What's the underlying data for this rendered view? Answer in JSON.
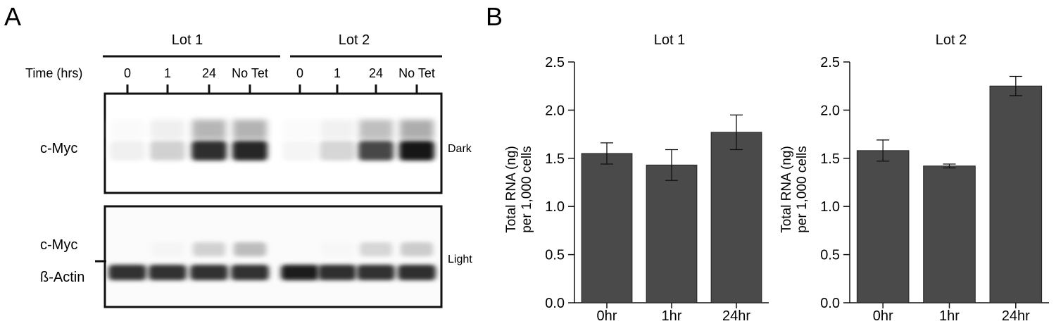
{
  "panel_a": {
    "label": "A",
    "lot_headers": [
      "Lot 1",
      "Lot 2"
    ],
    "time_label": "Time (hrs)",
    "lanes": [
      "0",
      "1",
      "24",
      "No Tet",
      "0",
      "1",
      "24",
      "No Tet"
    ],
    "blot_top": {
      "band_label": "c-Myc",
      "exposure_label": "Dark",
      "band_intensity": [
        0.06,
        0.18,
        0.82,
        0.85,
        0.04,
        0.16,
        0.72,
        0.92
      ]
    },
    "blot_bottom": {
      "band_label_myc": "c-Myc",
      "band_label_actin": "ß-Actin",
      "exposure_label": "Light",
      "myc_intensity": [
        0.0,
        0.04,
        0.18,
        0.26,
        0.0,
        0.03,
        0.16,
        0.2
      ],
      "actin_intensity": [
        0.8,
        0.8,
        0.8,
        0.8,
        0.88,
        0.82,
        0.8,
        0.82
      ]
    }
  },
  "panel_b": {
    "label": "B"
  },
  "chart_data": [
    {
      "type": "bar",
      "title": "Lot 1",
      "categories": [
        "0hr",
        "1hr",
        "24hr"
      ],
      "values": [
        1.55,
        1.43,
        1.77
      ],
      "errors": [
        0.11,
        0.16,
        0.18
      ],
      "ylabel_line1": "Total RNA (ng)",
      "ylabel_line2": "per 1,000 cells",
      "ylim": [
        0,
        2.5
      ],
      "yticks": [
        "0.0",
        "0.5",
        "1.0",
        "1.5",
        "2.0",
        "2.5"
      ],
      "bar_color": "#4a4a4a",
      "grid": false
    },
    {
      "type": "bar",
      "title": "Lot 2",
      "categories": [
        "0hr",
        "1hr",
        "24hr"
      ],
      "values": [
        1.58,
        1.42,
        2.25
      ],
      "errors": [
        0.11,
        0.02,
        0.1
      ],
      "ylabel_line1": "Total RNA (ng)",
      "ylabel_line2": "per 1,000 cells",
      "ylim": [
        0,
        2.5
      ],
      "yticks": [
        "0.0",
        "0.5",
        "1.0",
        "1.5",
        "2.0",
        "2.5"
      ],
      "bar_color": "#4a4a4a",
      "grid": false
    }
  ]
}
